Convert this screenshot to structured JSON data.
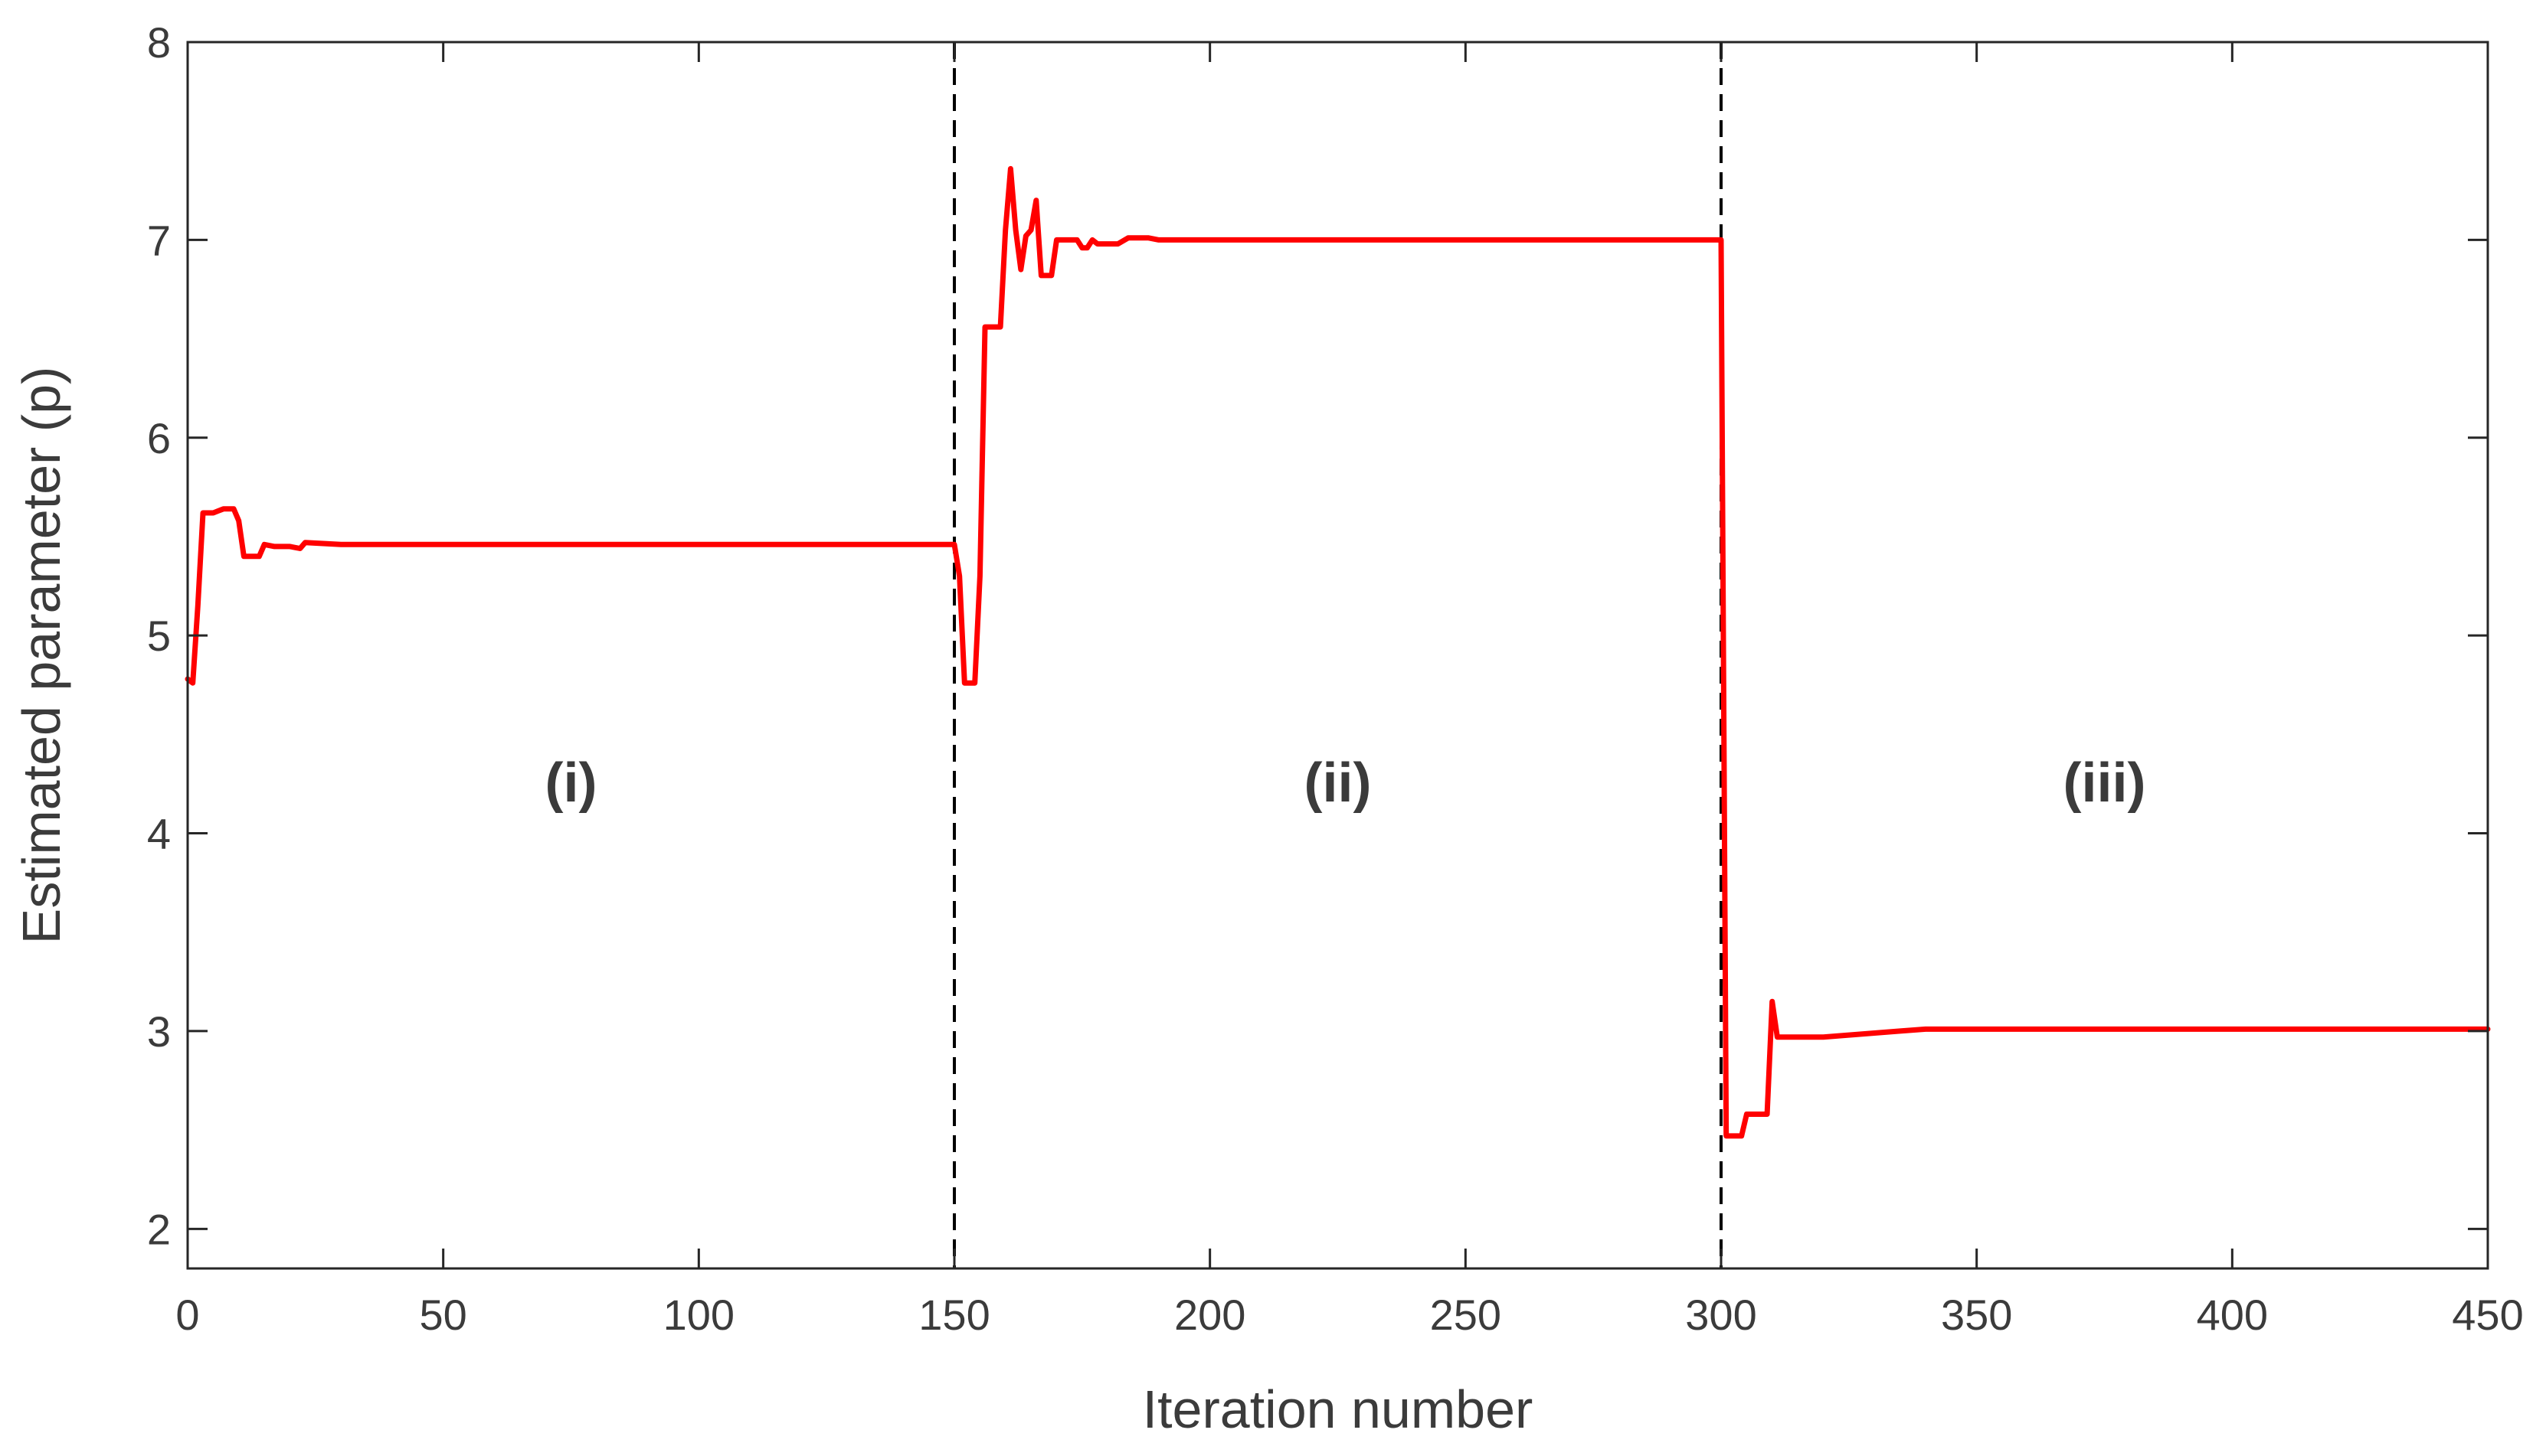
{
  "chart_data": {
    "type": "line",
    "title": "",
    "xlabel": "Iteration number",
    "ylabel": "Estimated parameter (p)",
    "xlim": [
      0,
      450
    ],
    "ylim": [
      1.8,
      8
    ],
    "xticks": [
      0,
      50,
      100,
      150,
      200,
      250,
      300,
      350,
      400,
      450
    ],
    "yticks": [
      2,
      3,
      4,
      5,
      6,
      7,
      8
    ],
    "grid": false,
    "legend": "none",
    "boundaries": [
      150,
      300
    ],
    "regions": [
      {
        "label": "(i)",
        "x": 75,
        "y": 4.16
      },
      {
        "label": "(ii)",
        "x": 225,
        "y": 4.16
      },
      {
        "label": "(iii)",
        "x": 375,
        "y": 4.16
      }
    ],
    "series": [
      {
        "color": "#ff0000",
        "points": [
          [
            0,
            4.78
          ],
          [
            1,
            4.76
          ],
          [
            2,
            5.15
          ],
          [
            3,
            5.62
          ],
          [
            5,
            5.62
          ],
          [
            6,
            5.63
          ],
          [
            7,
            5.64
          ],
          [
            9,
            5.64
          ],
          [
            10,
            5.58
          ],
          [
            11,
            5.4
          ],
          [
            14,
            5.4
          ],
          [
            15,
            5.46
          ],
          [
            17,
            5.45
          ],
          [
            20,
            5.45
          ],
          [
            22,
            5.44
          ],
          [
            23,
            5.47
          ],
          [
            30,
            5.46
          ],
          [
            150,
            5.46
          ],
          [
            151,
            5.3
          ],
          [
            152,
            4.76
          ],
          [
            154,
            4.76
          ],
          [
            155,
            5.3
          ],
          [
            156,
            6.56
          ],
          [
            159,
            6.56
          ],
          [
            160,
            7.05
          ],
          [
            161,
            7.36
          ],
          [
            162,
            7.05
          ],
          [
            163,
            6.85
          ],
          [
            164,
            7.02
          ],
          [
            165,
            7.05
          ],
          [
            166,
            7.2
          ],
          [
            167,
            6.82
          ],
          [
            169,
            6.82
          ],
          [
            170,
            7.0
          ],
          [
            174,
            7.0
          ],
          [
            175,
            6.96
          ],
          [
            176,
            6.96
          ],
          [
            177,
            7.0
          ],
          [
            178,
            6.98
          ],
          [
            182,
            6.98
          ],
          [
            184,
            7.01
          ],
          [
            188,
            7.01
          ],
          [
            190,
            7.0
          ],
          [
            300,
            7.0
          ],
          [
            301,
            2.47
          ],
          [
            304,
            2.47
          ],
          [
            305,
            2.58
          ],
          [
            309,
            2.58
          ],
          [
            310,
            3.15
          ],
          [
            311,
            2.97
          ],
          [
            320,
            2.97
          ],
          [
            325,
            2.98
          ],
          [
            330,
            2.99
          ],
          [
            335,
            3.0
          ],
          [
            340,
            3.01
          ],
          [
            450,
            3.01
          ]
        ]
      }
    ]
  }
}
